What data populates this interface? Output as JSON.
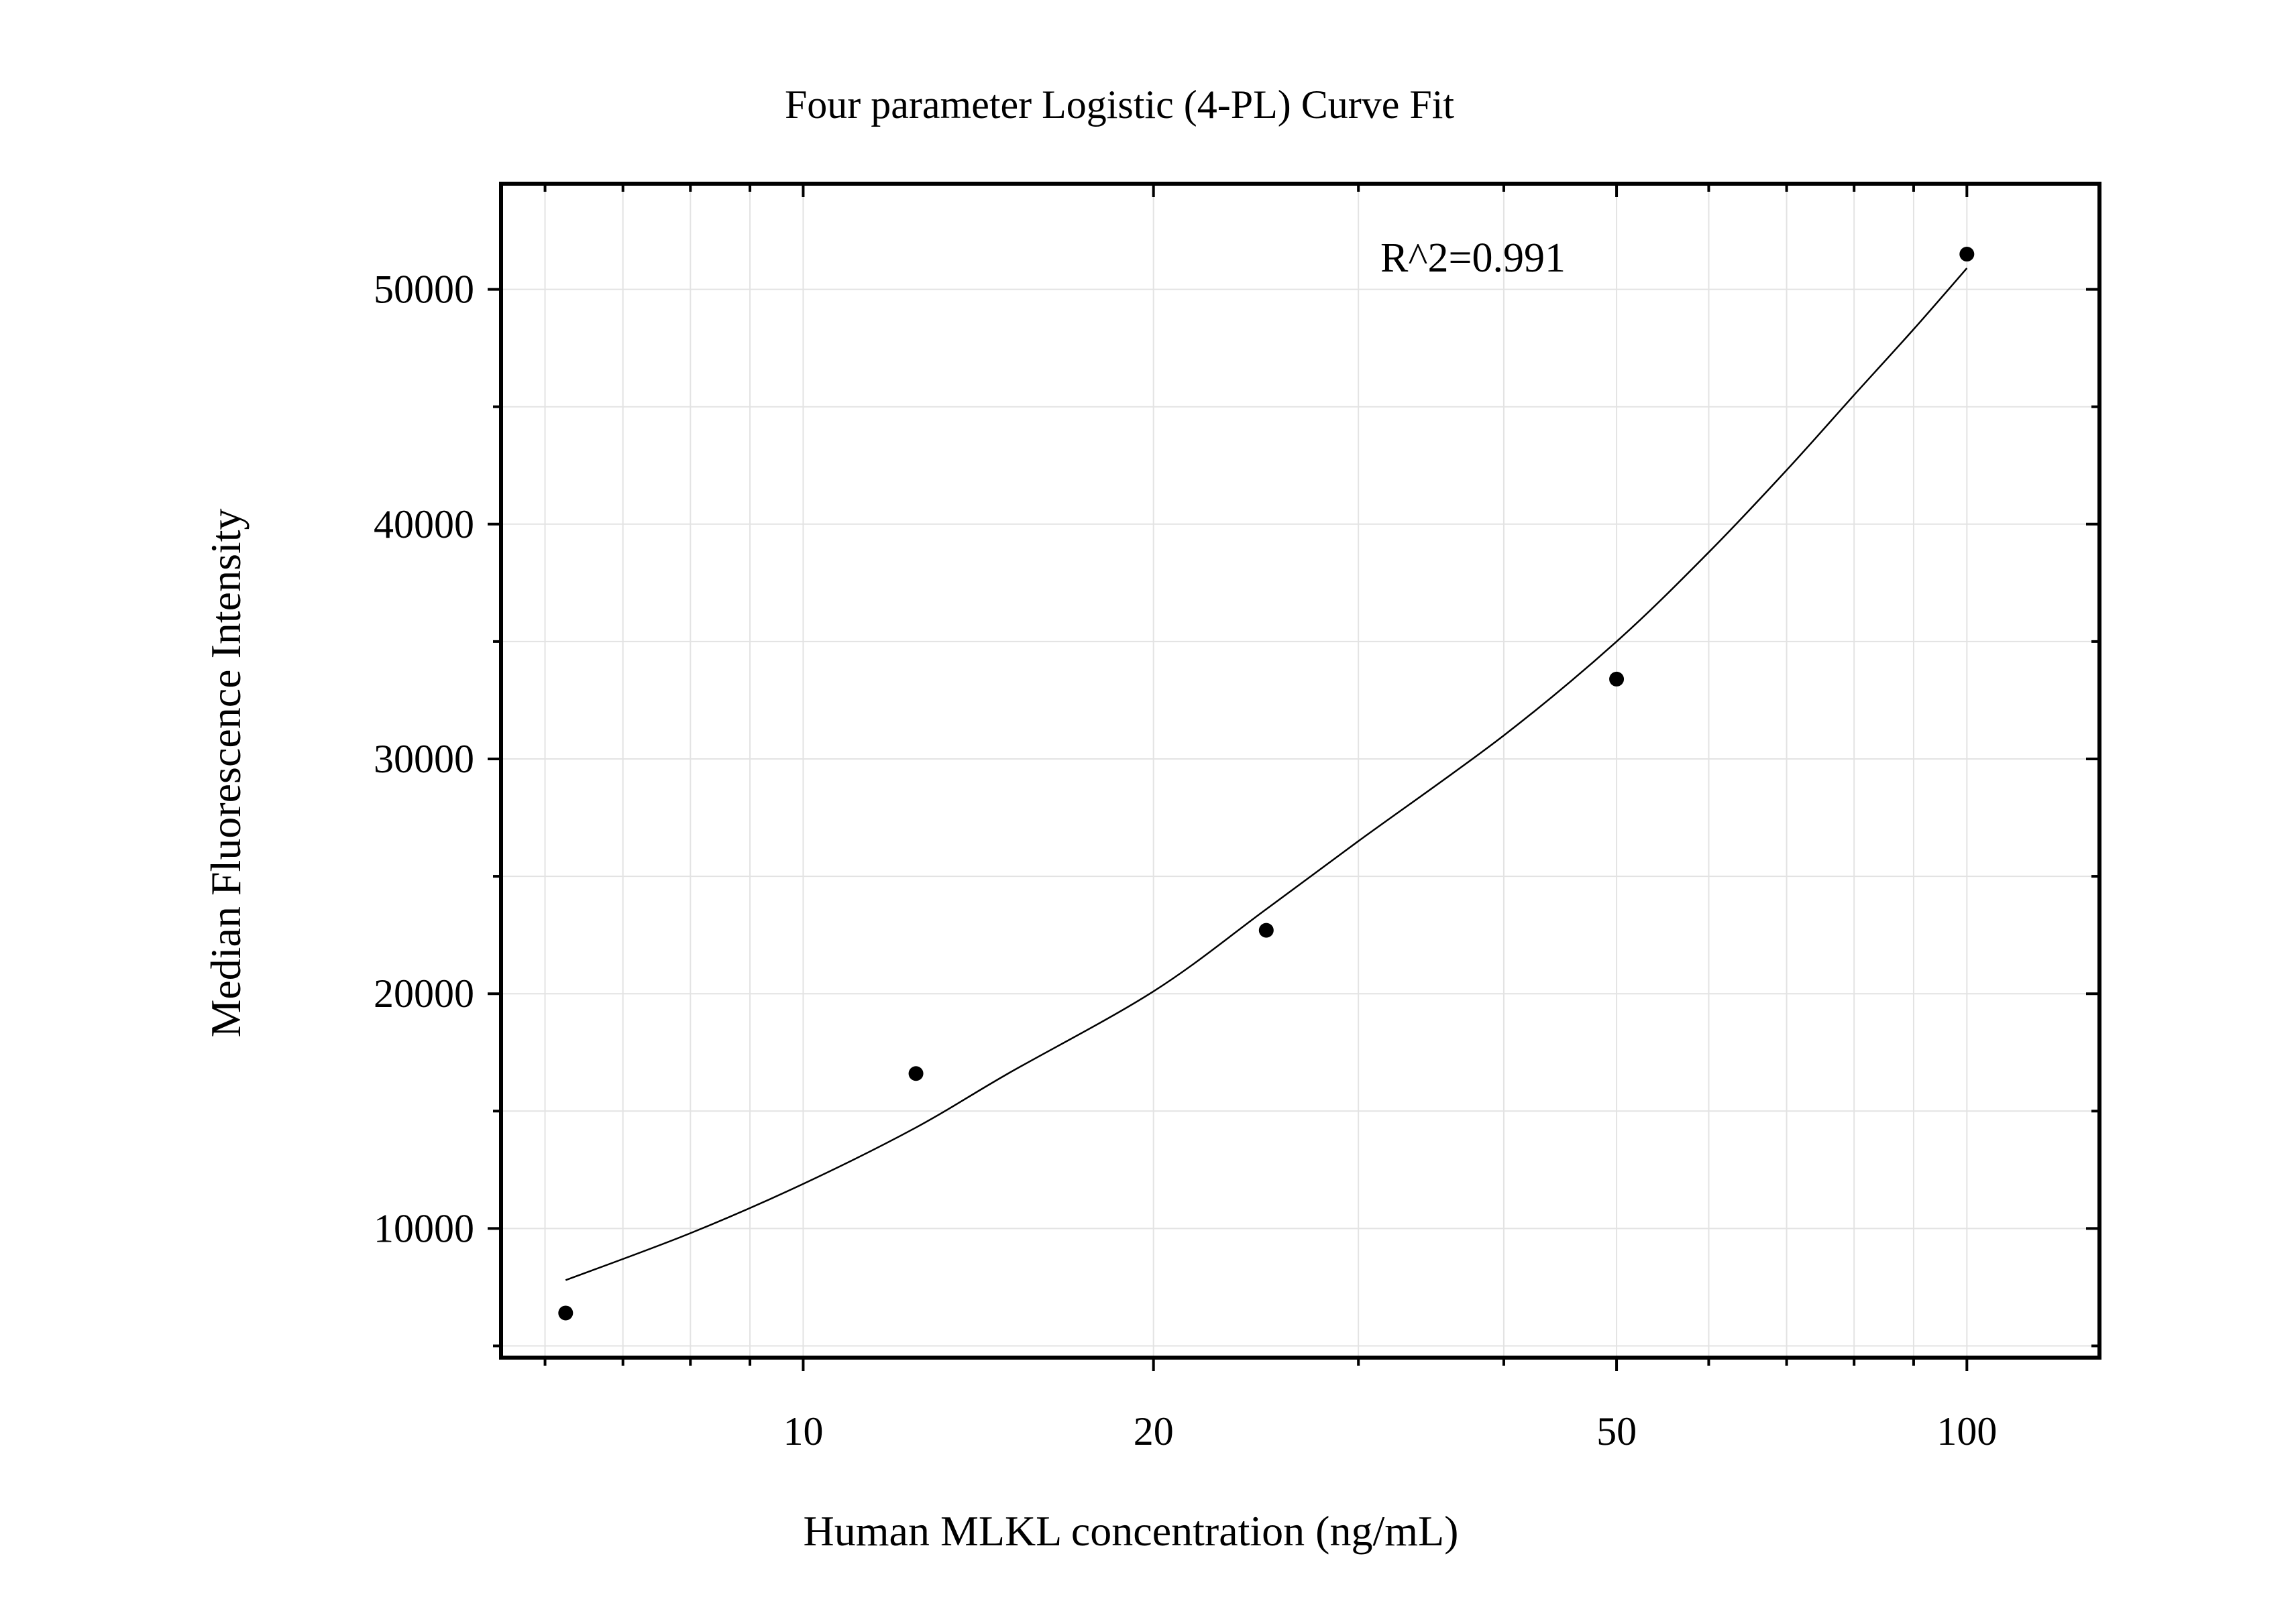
{
  "chart_data": {
    "type": "scatter",
    "title": "Four parameter Logistic (4-PL) Curve Fit",
    "xlabel": "Human MLKL concentration (ng/mL)",
    "ylabel": "Median Fluorescence Intensity",
    "x_scale": "log",
    "xlim": [
      5.5,
      130
    ],
    "ylim": [
      4500,
      54500
    ],
    "x_ticks": [
      10,
      20,
      50,
      100
    ],
    "x_tick_labels": [
      "10",
      "20",
      "50",
      "100"
    ],
    "y_ticks": [
      10000,
      20000,
      30000,
      40000,
      50000
    ],
    "y_tick_labels": [
      "10000",
      "20000",
      "30000",
      "40000",
      "50000"
    ],
    "grid": true,
    "annotation": "R^2=0.991",
    "series": [
      {
        "kind": "points",
        "x": [
          6.25,
          12.5,
          25,
          50,
          100
        ],
        "y": [
          6400,
          16600,
          22700,
          33400,
          51500
        ]
      },
      {
        "kind": "fit-curve",
        "x": [
          6.25,
          8,
          10,
          12.5,
          15,
          20,
          25,
          30,
          40,
          50,
          60,
          70,
          80,
          90,
          100
        ],
        "y": [
          7800,
          9800,
          11900,
          14300,
          16600,
          20100,
          23600,
          26500,
          31000,
          35000,
          38800,
          42300,
          45500,
          48300,
          50900
        ]
      }
    ],
    "colors": {
      "marks": "#000000",
      "grid": "#e3e3e3",
      "frame": "#000000"
    }
  }
}
